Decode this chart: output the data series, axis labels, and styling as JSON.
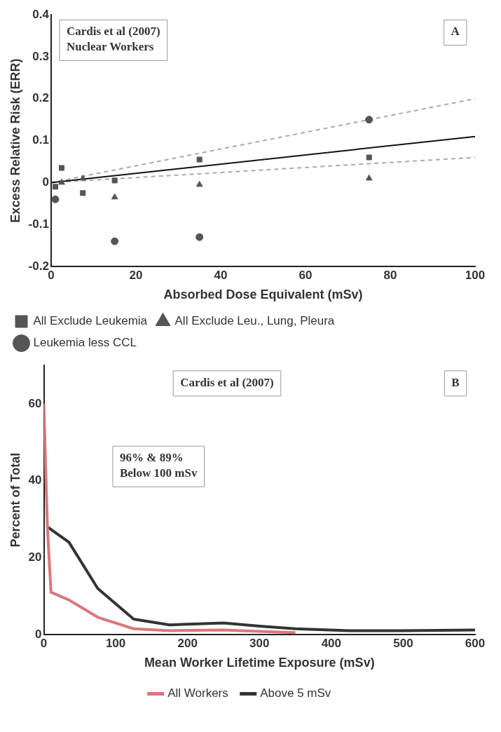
{
  "chart_data": [
    {
      "type": "scatter",
      "xlabel": "Absorbed Dose Equivalent (mSv)",
      "ylabel": "Excess Relative Risk (ERR)",
      "xlim": [
        0,
        100
      ],
      "xticks": [
        0,
        20,
        40,
        60,
        80,
        100
      ],
      "ylim": [
        -0.2,
        0.4
      ],
      "yticks": [
        -0.2,
        -0.1,
        0,
        0.1,
        0.2,
        0.3,
        0.4
      ],
      "grid": false,
      "legend": "bottom",
      "annotations": [
        "Cardis et al (2007)\nNuclear Workers",
        "A"
      ],
      "series": [
        {
          "name": "All Exclude Leukemia",
          "color": "#555555",
          "marker": "square",
          "x": [
            1,
            2.5,
            7.5,
            15,
            35,
            75
          ],
          "values": [
            -0.01,
            0.035,
            -0.025,
            0.005,
            0.055,
            0.06
          ]
        },
        {
          "name": "All Exclude Leu., Lung, Pleura",
          "color": "#555555",
          "marker": "triangle",
          "x": [
            2.5,
            7.5,
            15,
            35,
            75
          ],
          "values": [
            0,
            0.01,
            -0.035,
            -0.005,
            0.01
          ]
        },
        {
          "name": "Leukemia less CCL",
          "color": "#555555",
          "marker": "circle",
          "x": [
            1,
            7.5,
            15,
            35,
            75
          ],
          "values": [
            -0.04,
            null,
            -0.14,
            -0.13,
            0.15
          ]
        },
        {
          "type": "line",
          "color": "#111111",
          "line_style": "solid",
          "marker": "none",
          "x": [
            0,
            100
          ],
          "values": [
            0,
            0.11
          ]
        },
        {
          "type": "line",
          "color": "#aaaaaa",
          "line_style": "dashed",
          "marker": "none",
          "x": [
            0,
            100
          ],
          "values": [
            0,
            0.2
          ]
        },
        {
          "type": "line",
          "color": "#aaaaaa",
          "line_style": "dashed",
          "marker": "none",
          "x": [
            0,
            100
          ],
          "values": [
            0,
            0.06
          ]
        }
      ]
    },
    {
      "type": "line",
      "xlabel": "Mean Worker Lifetime Exposure (mSv)",
      "ylabel": "Percent of Total",
      "xlim": [
        0,
        600
      ],
      "xticks": [
        0,
        100,
        200,
        300,
        400,
        500,
        600
      ],
      "ylim": [
        0,
        70
      ],
      "yticks": [
        0,
        20,
        40,
        60
      ],
      "grid": false,
      "legend": "bottom",
      "marker": "none",
      "annotations": [
        "Cardis et al (2007)",
        "B",
        "96% & 89%\nBelow 100 mSv"
      ],
      "series": [
        {
          "name": "All Workers",
          "color": "#d9777a",
          "x": [
            0,
            5,
            10,
            35,
            75,
            125,
            175,
            250,
            300,
            350
          ],
          "values": [
            60,
            28,
            11,
            9,
            4.5,
            1.5,
            1,
            1.2,
            0.8,
            0.5
          ]
        },
        {
          "name": "Above 5 mSv",
          "color": "#333333",
          "x": [
            5,
            35,
            75,
            125,
            175,
            250,
            300,
            350,
            425,
            500,
            600
          ],
          "values": [
            28,
            24,
            12,
            4,
            2.5,
            3,
            2.2,
            1.5,
            1,
            1,
            1.2
          ]
        }
      ]
    }
  ]
}
